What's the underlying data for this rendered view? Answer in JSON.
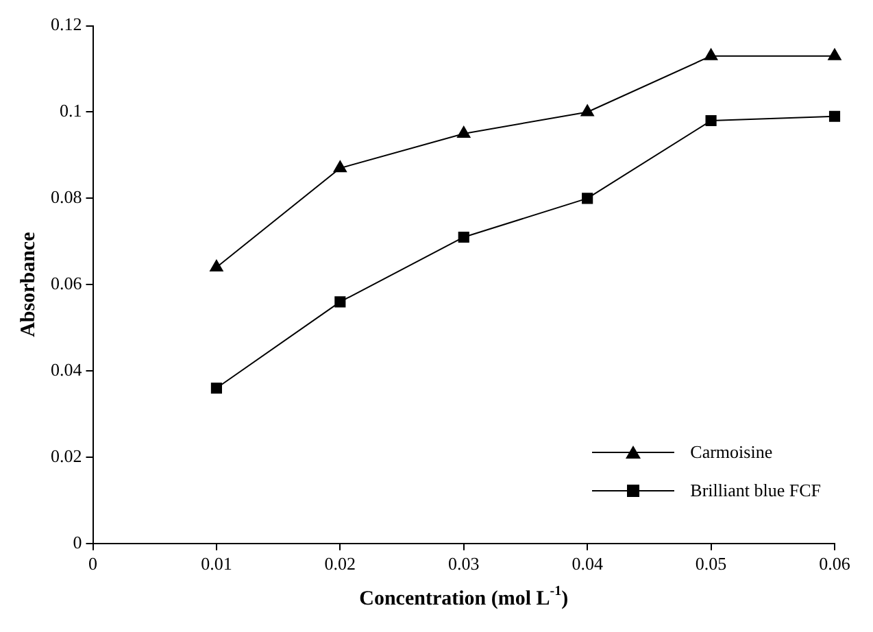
{
  "chart_data": {
    "type": "line",
    "xlabel": "Concentration (mol L$^{-1}$)",
    "ylabel": "Absorbance",
    "x": [
      0.01,
      0.02,
      0.03,
      0.04,
      0.05,
      0.06
    ],
    "series": [
      {
        "name": "Carmoisine",
        "color": "#000000",
        "marker": "triangle",
        "values": [
          0.064,
          0.087,
          0.095,
          0.1,
          0.113,
          0.113
        ]
      },
      {
        "name": "Brilliant blue FCF",
        "color": "#000000",
        "marker": "square",
        "values": [
          0.036,
          0.056,
          0.071,
          0.08,
          0.098,
          0.099
        ]
      }
    ],
    "xlim": [
      0,
      0.06
    ],
    "xticks": [
      0,
      0.01,
      0.02,
      0.03,
      0.04,
      0.05,
      0.06
    ],
    "ylim": [
      0,
      0.12
    ],
    "yticks": [
      0,
      0.02,
      0.04,
      0.06,
      0.08,
      0.1,
      0.12
    ],
    "grid": false,
    "legend": "bottom right",
    "line_style": "solid"
  }
}
